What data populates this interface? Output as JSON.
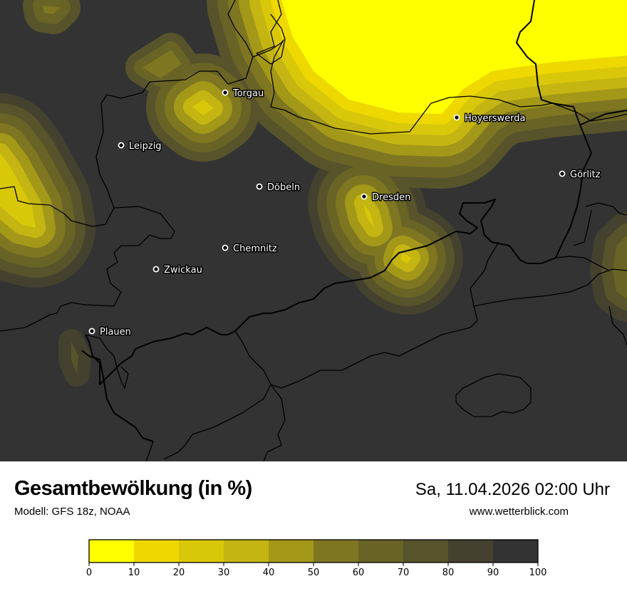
{
  "title": "Gesamtbewölkung (in %)",
  "model": "Modell: GFS 18z, NOAA",
  "datetime": "Sa, 11.04.2026 02:00 Uhr",
  "website": "www.wetterblick.com",
  "legend": {
    "ticks": [
      "0",
      "10",
      "20",
      "30",
      "40",
      "50",
      "60",
      "70",
      "80",
      "90",
      "100"
    ],
    "colors": [
      "#ffff00",
      "#eed800",
      "#d9c80a",
      "#c4b512",
      "#a39818",
      "#7f7622",
      "#696325",
      "#57532b",
      "#44412e",
      "#333333"
    ]
  },
  "cities": [
    {
      "name": "Torgau"
    },
    {
      "name": "Hoyerswerda"
    },
    {
      "name": "Leipzig"
    },
    {
      "name": "Görlitz"
    },
    {
      "name": "Döbeln"
    },
    {
      "name": "Dresden"
    },
    {
      "name": "Chemnitz"
    },
    {
      "name": "Zwickau"
    },
    {
      "name": "Plauen"
    }
  ]
}
